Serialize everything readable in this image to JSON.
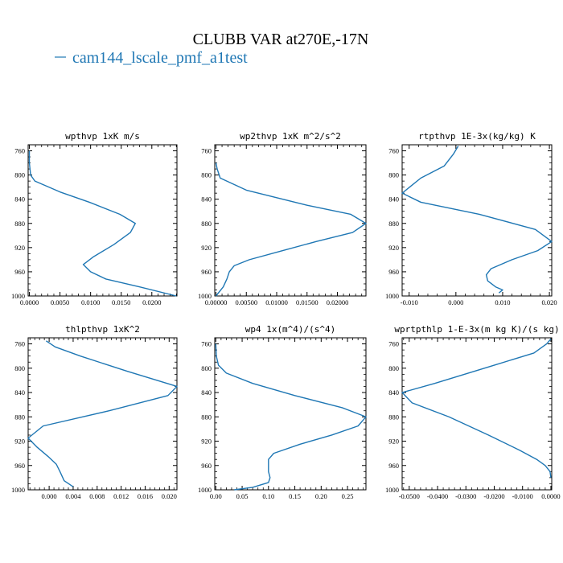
{
  "figure": {
    "title": "CLUBB VAR at270E,-17N",
    "legend_label": "cam144_lscale_pmf_a1test",
    "legend_color": "#1f77b4",
    "line_color": "#1f77b4"
  },
  "chart_data": [
    {
      "type": "line",
      "title": "wpthvp  1xK m/s",
      "ylim": [
        1000,
        750
      ],
      "yticks": [
        760,
        800,
        840,
        880,
        920,
        960,
        1000
      ],
      "xlim": [
        -0.0002,
        0.0241
      ],
      "xticks": [
        0.0,
        0.005,
        0.01,
        0.015,
        0.02
      ],
      "xtick_labels": [
        "0.0000",
        "0.0050",
        "0.0100",
        "0.0150",
        "0.0200"
      ],
      "series": [
        {
          "x": [
            0.0,
            0.0,
            0.0002,
            0.0009,
            0.005,
            0.0098,
            0.0148,
            0.0173,
            0.0165,
            0.0138,
            0.0105,
            0.0088,
            0.01,
            0.0125,
            0.018,
            0.024
          ],
          "y": [
            760,
            780,
            800,
            810,
            828,
            845,
            865,
            880,
            895,
            915,
            935,
            948,
            960,
            972,
            985,
            1000
          ]
        }
      ]
    },
    {
      "type": "line",
      "title": "wp2thvp  1xK m^2/s^2",
      "ylim": [
        1000,
        750
      ],
      "yticks": [
        760,
        800,
        840,
        880,
        920,
        960,
        1000
      ],
      "xlim": [
        -0.0002,
        0.0247
      ],
      "xticks": [
        0.0,
        0.005,
        0.01,
        0.015,
        0.02
      ],
      "xtick_labels": [
        "0.00000",
        "0.00500",
        "0.01000",
        "0.01500",
        "0.02000"
      ],
      "series": [
        {
          "x": [
            0.0,
            0.0002,
            0.0007,
            0.005,
            0.015,
            0.0222,
            0.0247,
            0.0225,
            0.0165,
            0.011,
            0.0055,
            0.003,
            0.0022,
            0.0018,
            0.0012,
            0.0
          ],
          "y": [
            780,
            790,
            805,
            825,
            850,
            865,
            880,
            895,
            910,
            925,
            940,
            950,
            960,
            972,
            985,
            1000
          ]
        }
      ]
    },
    {
      "type": "line",
      "title": "rtpthvp  1E-3x(kg/kg) K",
      "ylim": [
        1000,
        750
      ],
      "yticks": [
        760,
        800,
        840,
        880,
        920,
        960,
        1000
      ],
      "xlim": [
        -0.0115,
        0.0205
      ],
      "xticks": [
        -0.01,
        0.0,
        0.01,
        0.02
      ],
      "xtick_labels": [
        "-0.010",
        "0.000",
        "0.010",
        "0.020"
      ],
      "series": [
        {
          "x": [
            0.0005,
            -0.0005,
            -0.0025,
            -0.0075,
            -0.0115,
            -0.0075,
            0.005,
            0.017,
            0.0205,
            0.0175,
            0.012,
            0.0075,
            0.0065,
            0.0068,
            0.0085,
            0.01,
            0.0092
          ],
          "y": [
            752,
            765,
            785,
            805,
            830,
            845,
            865,
            890,
            910,
            925,
            940,
            955,
            965,
            975,
            985,
            990,
            995
          ]
        }
      ]
    },
    {
      "type": "line",
      "title": "thlpthvp  1xK^2",
      "ylim": [
        1000,
        750
      ],
      "yticks": [
        760,
        800,
        840,
        880,
        920,
        960,
        1000
      ],
      "xlim": [
        -0.0035,
        0.0213
      ],
      "xticks": [
        0.0,
        0.004,
        0.008,
        0.012,
        0.016,
        0.02
      ],
      "xtick_labels": [
        "0.000",
        "0.004",
        "0.008",
        "0.012",
        "0.016",
        "0.020"
      ],
      "series": [
        {
          "x": [
            -0.0005,
            0.001,
            0.0052,
            0.013,
            0.0213,
            0.0198,
            0.01,
            -0.001,
            -0.0035,
            -0.002,
            -0.0002,
            0.0012,
            0.0018,
            0.0025,
            0.004
          ],
          "y": [
            755,
            765,
            780,
            805,
            830,
            845,
            870,
            895,
            915,
            930,
            945,
            958,
            970,
            985,
            995
          ]
        }
      ]
    },
    {
      "type": "line",
      "title": "wp4  1x(m^4)/(s^4)",
      "ylim": [
        1000,
        750
      ],
      "yticks": [
        760,
        800,
        840,
        880,
        920,
        960,
        1000
      ],
      "xlim": [
        -0.002,
        0.285
      ],
      "xticks": [
        0.0,
        0.05,
        0.1,
        0.15,
        0.2,
        0.25
      ],
      "xtick_labels": [
        "0.00",
        "0.05",
        "0.10",
        "0.15",
        "0.20",
        "0.25"
      ],
      "series": [
        {
          "x": [
            0.0,
            0.001,
            0.005,
            0.02,
            0.07,
            0.15,
            0.24,
            0.285,
            0.27,
            0.22,
            0.16,
            0.11,
            0.1,
            0.1,
            0.1,
            0.103,
            0.1,
            0.07,
            0.035
          ],
          "y": [
            760,
            780,
            795,
            808,
            825,
            845,
            865,
            880,
            895,
            910,
            925,
            940,
            950,
            960,
            970,
            980,
            988,
            996,
            1000
          ]
        }
      ]
    },
    {
      "type": "line",
      "title": "wprtpthlp  1-E-3x(m kg K)/(s kg)",
      "ylim": [
        1000,
        750
      ],
      "yticks": [
        760,
        800,
        840,
        880,
        920,
        960,
        1000
      ],
      "xlim": [
        -0.0525,
        0.0003
      ],
      "xticks": [
        -0.05,
        -0.04,
        -0.03,
        -0.02,
        -0.01,
        0.0
      ],
      "xtick_labels": [
        "-0.0500",
        "-0.0400",
        "-0.0300",
        "-0.0200",
        "-0.0100",
        "0.0000"
      ],
      "series": [
        {
          "x": [
            0.0,
            -0.0015,
            -0.006,
            -0.02,
            -0.041,
            -0.0525,
            -0.049,
            -0.036,
            -0.022,
            -0.011,
            -0.005,
            -0.002,
            -0.0003,
            0.0
          ],
          "y": [
            752,
            760,
            775,
            795,
            825,
            840,
            857,
            880,
            910,
            935,
            950,
            960,
            970,
            980
          ]
        }
      ]
    }
  ]
}
